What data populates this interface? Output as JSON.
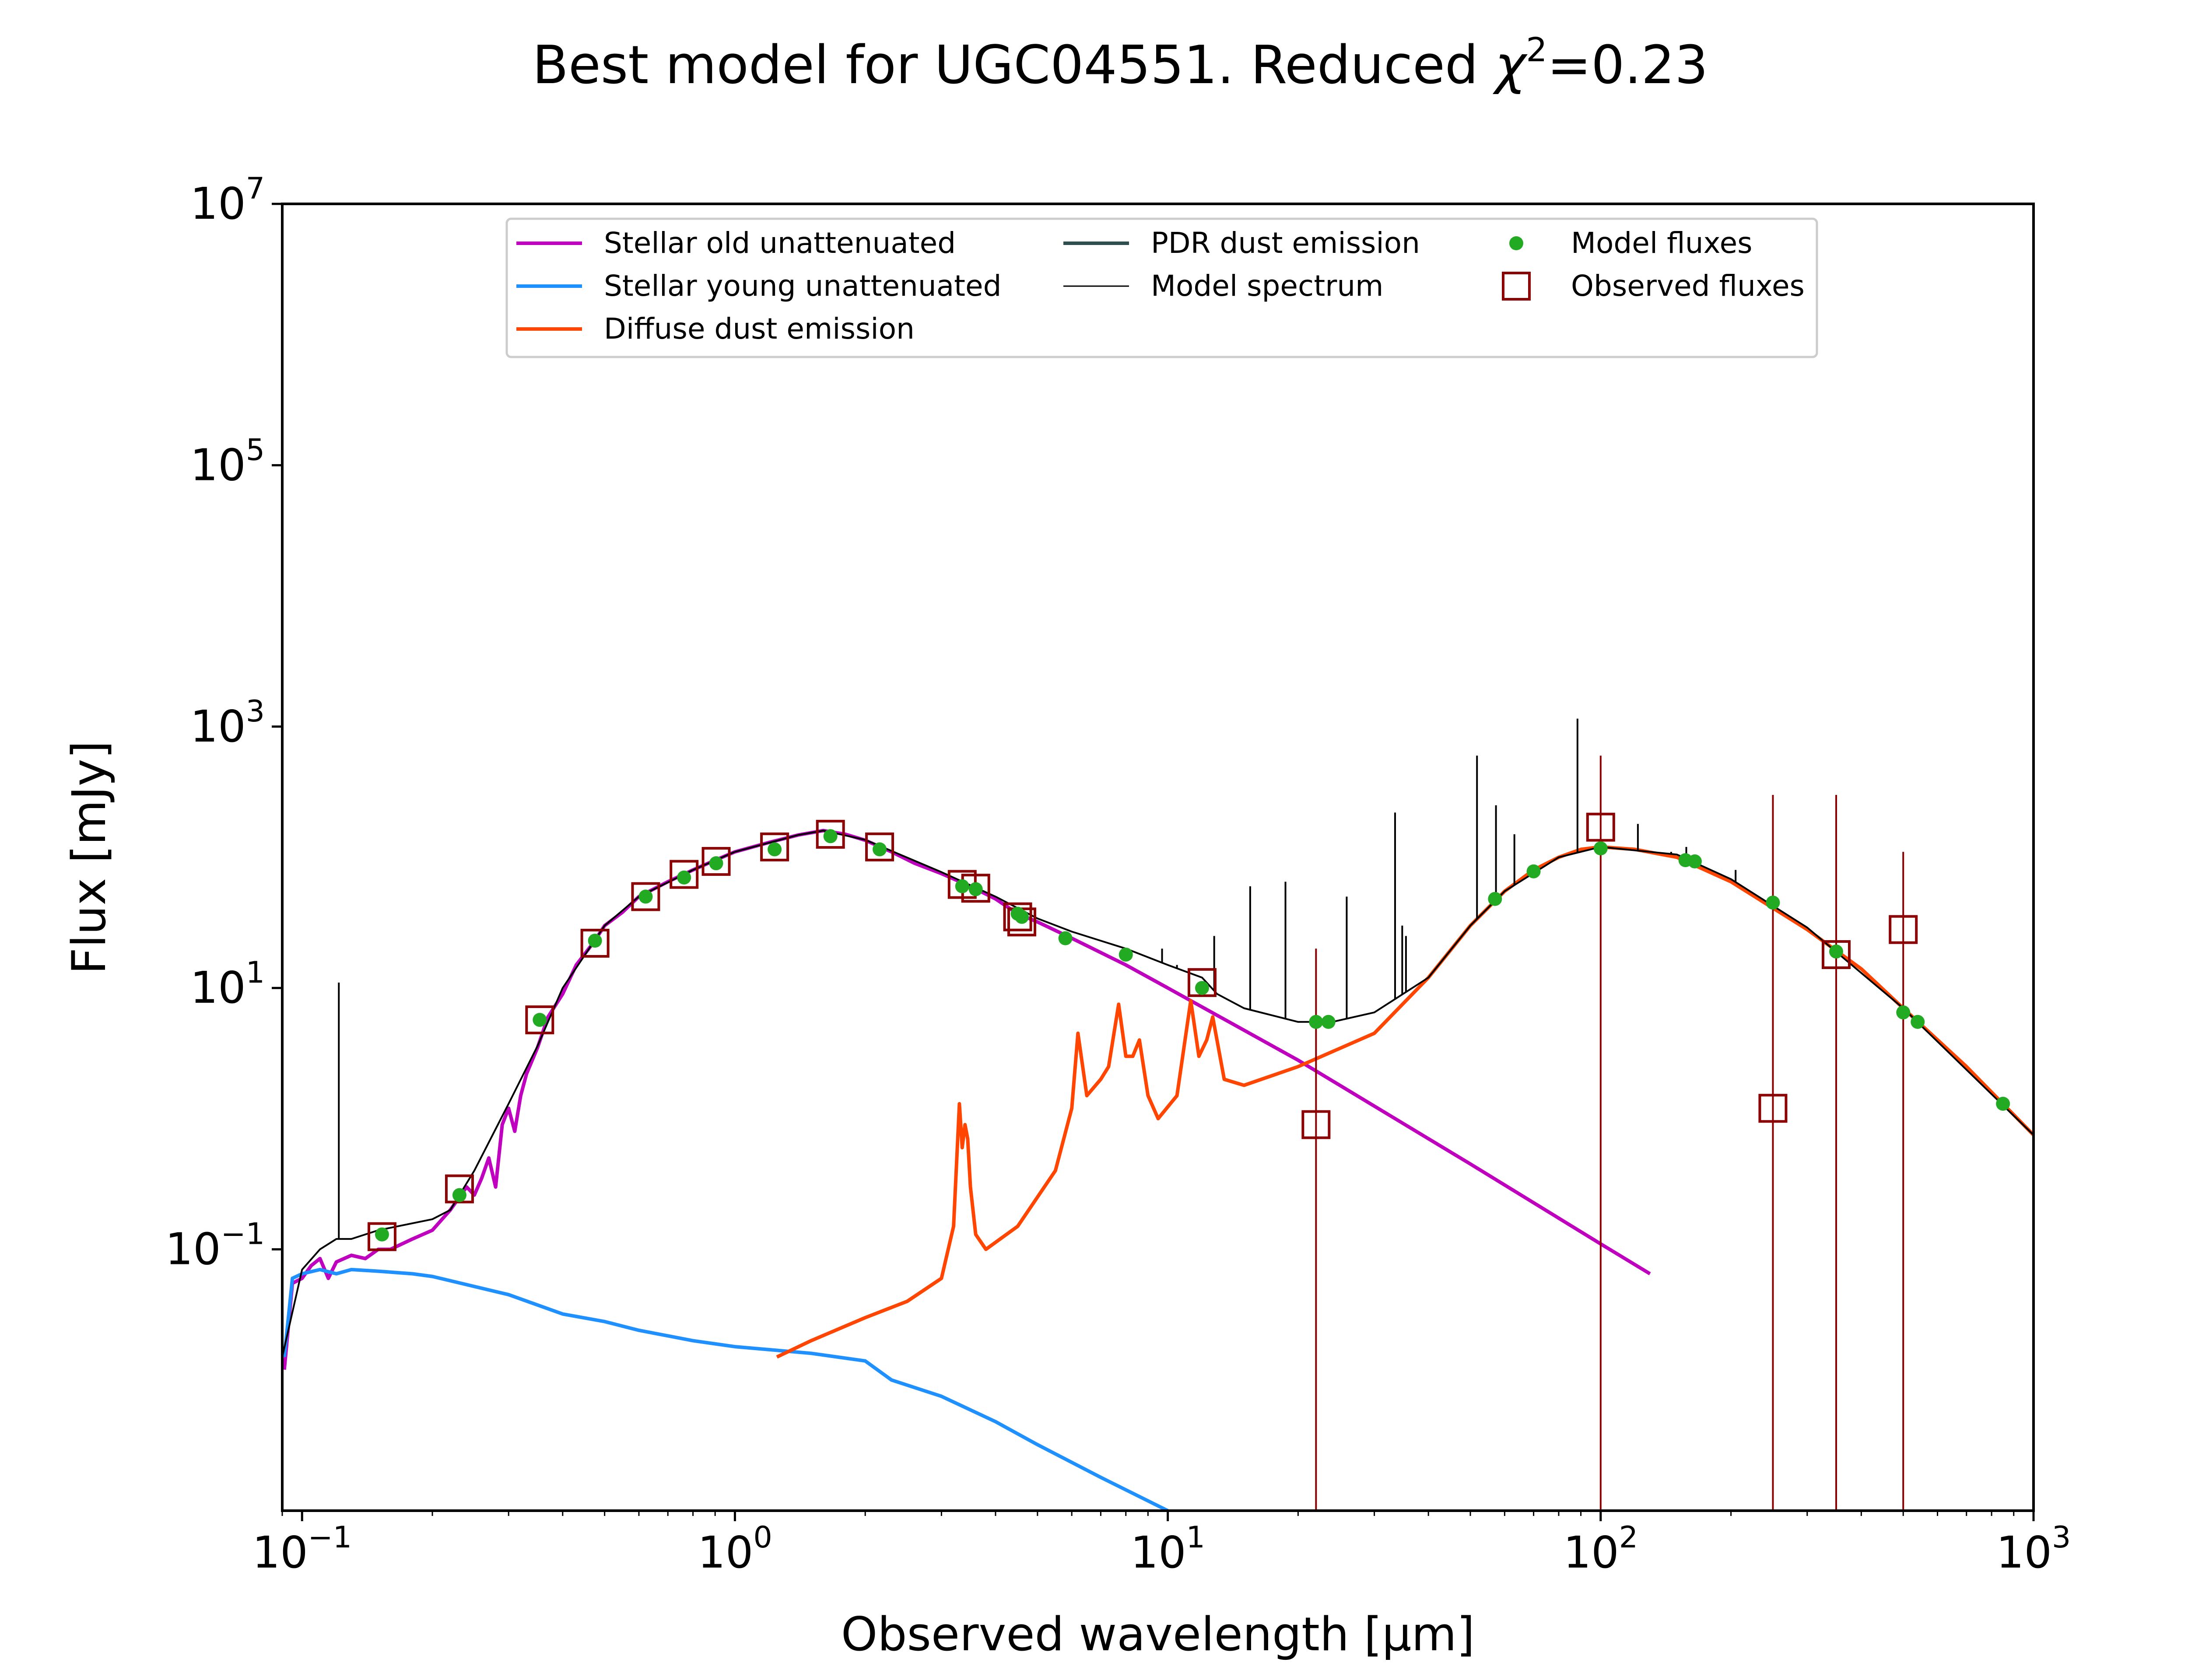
{
  "chart_data": {
    "type": "line",
    "title": "Best model for UGC04551. Reduced",
    "title_chi": "χ",
    "title_chi_exp": "2",
    "title_chi_value": "=0.23",
    "xlabel": "Observed wavelength [μm]",
    "ylabel": "Flux [mJy]",
    "xscale": "log",
    "yscale": "log",
    "xlim": [
      0.09,
      1000
    ],
    "ylim": [
      0.001,
      10000000
    ],
    "x_ticks": [
      {
        "value": 0.1,
        "base": "10",
        "exp": "−1"
      },
      {
        "value": 1,
        "base": "10",
        "exp": "0"
      },
      {
        "value": 10,
        "base": "10",
        "exp": "1"
      },
      {
        "value": 100,
        "base": "10",
        "exp": "2"
      },
      {
        "value": 1000,
        "base": "10",
        "exp": "3"
      }
    ],
    "y_ticks": [
      {
        "value": 0.1,
        "base": "10",
        "exp": "−1"
      },
      {
        "value": 10,
        "base": "10",
        "exp": "1"
      },
      {
        "value": 1000,
        "base": "10",
        "exp": "3"
      },
      {
        "value": 100000,
        "base": "10",
        "exp": "5"
      },
      {
        "value": 10000000,
        "base": "10",
        "exp": "7"
      }
    ],
    "legend_position": "upper-center",
    "legend": [
      {
        "label": "Stellar old unattenuated",
        "kind": "line",
        "color": "#bf00bf"
      },
      {
        "label": "Stellar young unattenuated",
        "kind": "line",
        "color": "#1e90ff"
      },
      {
        "label": "Diffuse dust emission",
        "kind": "line",
        "color": "#ff4500"
      },
      {
        "label": "PDR dust emission",
        "kind": "line",
        "color": "#2f4f4f"
      },
      {
        "label": "Model spectrum",
        "kind": "thinline",
        "color": "#000000"
      },
      {
        "label": "Model fluxes",
        "kind": "dot",
        "color": "#22aa22"
      },
      {
        "label": "Observed fluxes",
        "kind": "square",
        "color": "#8b0000"
      }
    ],
    "series": [
      {
        "name": "Stellar old unattenuated",
        "color": "#bf00bf",
        "points": [
          [
            0.091,
            0.012
          ],
          [
            0.095,
            0.055
          ],
          [
            0.1,
            0.06
          ],
          [
            0.105,
            0.075
          ],
          [
            0.11,
            0.085
          ],
          [
            0.115,
            0.06
          ],
          [
            0.12,
            0.08
          ],
          [
            0.13,
            0.09
          ],
          [
            0.14,
            0.085
          ],
          [
            0.15,
            0.1
          ],
          [
            0.16,
            0.1
          ],
          [
            0.18,
            0.12
          ],
          [
            0.2,
            0.14
          ],
          [
            0.22,
            0.2
          ],
          [
            0.24,
            0.3
          ],
          [
            0.25,
            0.26
          ],
          [
            0.26,
            0.35
          ],
          [
            0.27,
            0.5
          ],
          [
            0.28,
            0.3
          ],
          [
            0.29,
            0.9
          ],
          [
            0.3,
            1.2
          ],
          [
            0.31,
            0.8
          ],
          [
            0.32,
            1.5
          ],
          [
            0.33,
            2.2
          ],
          [
            0.35,
            3.5
          ],
          [
            0.37,
            6
          ],
          [
            0.4,
            9
          ],
          [
            0.43,
            15
          ],
          [
            0.47,
            22
          ],
          [
            0.5,
            30
          ],
          [
            0.55,
            38
          ],
          [
            0.6,
            50
          ],
          [
            0.7,
            65
          ],
          [
            0.8,
            80
          ],
          [
            0.9,
            95
          ],
          [
            1.0,
            110
          ],
          [
            1.2,
            130
          ],
          [
            1.4,
            148
          ],
          [
            1.6,
            160
          ],
          [
            1.8,
            150
          ],
          [
            2.0,
            135
          ],
          [
            2.3,
            110
          ],
          [
            2.6,
            90
          ],
          [
            3.0,
            75
          ],
          [
            3.5,
            60
          ],
          [
            4.0,
            48
          ],
          [
            4.5,
            37
          ],
          [
            5.0,
            32
          ],
          [
            6.0,
            24
          ],
          [
            8.0,
            15
          ],
          [
            10,
            10
          ],
          [
            20,
            2.8
          ],
          [
            50,
            0.45
          ],
          [
            100,
            0.11
          ],
          [
            130,
            0.065
          ]
        ]
      },
      {
        "name": "Stellar young unattenuated",
        "color": "#1e90ff",
        "points": [
          [
            0.091,
            0.015
          ],
          [
            0.095,
            0.06
          ],
          [
            0.1,
            0.065
          ],
          [
            0.11,
            0.07
          ],
          [
            0.12,
            0.065
          ],
          [
            0.13,
            0.07
          ],
          [
            0.15,
            0.068
          ],
          [
            0.18,
            0.065
          ],
          [
            0.2,
            0.062
          ],
          [
            0.3,
            0.045
          ],
          [
            0.4,
            0.032
          ],
          [
            0.5,
            0.028
          ],
          [
            0.6,
            0.024
          ],
          [
            0.8,
            0.02
          ],
          [
            1.0,
            0.018
          ],
          [
            1.5,
            0.016
          ],
          [
            2.0,
            0.014
          ],
          [
            2.3,
            0.01
          ],
          [
            3.0,
            0.0075
          ],
          [
            4.0,
            0.0048
          ],
          [
            5.0,
            0.0032
          ],
          [
            7.0,
            0.0018
          ],
          [
            10.0,
            0.001
          ]
        ]
      },
      {
        "name": "Diffuse dust emission",
        "color": "#ff4500",
        "points": [
          [
            1.25,
            0.015
          ],
          [
            1.5,
            0.02
          ],
          [
            2.0,
            0.03
          ],
          [
            2.5,
            0.04
          ],
          [
            3.0,
            0.06
          ],
          [
            3.2,
            0.15
          ],
          [
            3.3,
            1.3
          ],
          [
            3.35,
            0.6
          ],
          [
            3.4,
            0.9
          ],
          [
            3.45,
            0.7
          ],
          [
            3.5,
            0.3
          ],
          [
            3.6,
            0.13
          ],
          [
            3.8,
            0.1
          ],
          [
            4.5,
            0.15
          ],
          [
            5.5,
            0.4
          ],
          [
            6.0,
            1.2
          ],
          [
            6.2,
            4.5
          ],
          [
            6.5,
            1.5
          ],
          [
            7.0,
            2.0
          ],
          [
            7.3,
            2.5
          ],
          [
            7.7,
            7.5
          ],
          [
            8.0,
            3.0
          ],
          [
            8.3,
            3.0
          ],
          [
            8.6,
            4.0
          ],
          [
            9.0,
            1.5
          ],
          [
            9.5,
            1.0
          ],
          [
            10.5,
            1.5
          ],
          [
            11.3,
            8.0
          ],
          [
            11.8,
            3.0
          ],
          [
            12.3,
            4.0
          ],
          [
            12.7,
            6.0
          ],
          [
            13.5,
            2.0
          ],
          [
            15,
            1.8
          ],
          [
            20,
            2.5
          ],
          [
            30,
            4.5
          ],
          [
            40,
            12
          ],
          [
            50,
            30
          ],
          [
            60,
            55
          ],
          [
            70,
            80
          ],
          [
            80,
            100
          ],
          [
            90,
            115
          ],
          [
            100,
            120
          ],
          [
            120,
            115
          ],
          [
            150,
            100
          ],
          [
            200,
            65
          ],
          [
            300,
            28
          ],
          [
            400,
            14
          ],
          [
            500,
            7
          ],
          [
            700,
            2.5
          ],
          [
            1000,
            0.75
          ]
        ]
      },
      {
        "name": "Model spectrum",
        "color": "#000000",
        "points": [
          [
            0.09,
            0.015
          ],
          [
            0.1,
            0.07
          ],
          [
            0.11,
            0.1
          ],
          [
            0.12,
            0.12
          ],
          [
            0.13,
            0.12
          ],
          [
            0.15,
            0.14
          ],
          [
            0.2,
            0.17
          ],
          [
            0.22,
            0.2
          ],
          [
            0.25,
            0.4
          ],
          [
            0.3,
            1.3
          ],
          [
            0.35,
            3.6
          ],
          [
            0.4,
            10
          ],
          [
            0.5,
            30
          ],
          [
            0.6,
            50
          ],
          [
            0.8,
            80
          ],
          [
            1.0,
            110
          ],
          [
            1.4,
            148
          ],
          [
            1.6,
            160
          ],
          [
            2.0,
            136
          ],
          [
            3.0,
            77
          ],
          [
            4.0,
            50
          ],
          [
            5.0,
            34
          ],
          [
            6.0,
            27
          ],
          [
            8.0,
            20
          ],
          [
            10,
            15
          ],
          [
            12,
            12
          ],
          [
            13,
            9
          ],
          [
            15,
            7
          ],
          [
            20,
            5.5
          ],
          [
            24,
            5.5
          ],
          [
            30,
            6.5
          ],
          [
            40,
            12
          ],
          [
            50,
            30
          ],
          [
            60,
            55
          ],
          [
            80,
            100
          ],
          [
            100,
            120
          ],
          [
            150,
            105
          ],
          [
            200,
            68
          ],
          [
            300,
            29
          ],
          [
            500,
            7
          ],
          [
            1000,
            0.75
          ]
        ]
      }
    ],
    "emission_lines": [
      [
        0.1216,
        11
      ],
      [
        9.7,
        20
      ],
      [
        10.5,
        15
      ],
      [
        12.8,
        25
      ],
      [
        15.5,
        60
      ],
      [
        18.7,
        65
      ],
      [
        25.9,
        50
      ],
      [
        33.5,
        220
      ],
      [
        34.8,
        30
      ],
      [
        35.5,
        25
      ],
      [
        51.8,
        600
      ],
      [
        57.3,
        250
      ],
      [
        63.2,
        150
      ],
      [
        88.4,
        1150
      ],
      [
        121.9,
        180
      ],
      [
        145.5,
        110
      ],
      [
        157.7,
        120
      ],
      [
        205,
        80
      ]
    ],
    "model_fluxes": [
      [
        0.153,
        0.13
      ],
      [
        0.231,
        0.26
      ],
      [
        0.354,
        5.7
      ],
      [
        0.475,
        23
      ],
      [
        0.622,
        50
      ],
      [
        0.763,
        70
      ],
      [
        0.905,
        90
      ],
      [
        1.235,
        115
      ],
      [
        1.662,
        145
      ],
      [
        2.159,
        115
      ],
      [
        3.35,
        60
      ],
      [
        3.6,
        57
      ],
      [
        4.5,
        37
      ],
      [
        4.6,
        35
      ],
      [
        5.8,
        24
      ],
      [
        8.0,
        18
      ],
      [
        12.0,
        10
      ],
      [
        22.0,
        5.5
      ],
      [
        23.5,
        5.5
      ],
      [
        57,
        48
      ],
      [
        70,
        78
      ],
      [
        100,
        117
      ],
      [
        157,
        95
      ],
      [
        165,
        93
      ],
      [
        250,
        45
      ],
      [
        350,
        19
      ],
      [
        500,
        6.5
      ],
      [
        540,
        5.5
      ],
      [
        850,
        1.3
      ]
    ],
    "observed_fluxes": [
      {
        "x": 0.153,
        "y": 0.125,
        "err": null
      },
      {
        "x": 0.231,
        "y": 0.29,
        "err": null
      },
      {
        "x": 0.354,
        "y": 5.7,
        "err": null
      },
      {
        "x": 0.475,
        "y": 22,
        "err": null
      },
      {
        "x": 0.622,
        "y": 50,
        "err": null
      },
      {
        "x": 0.763,
        "y": 74,
        "err": null
      },
      {
        "x": 0.905,
        "y": 93,
        "err": null
      },
      {
        "x": 1.235,
        "y": 120,
        "err": null
      },
      {
        "x": 1.662,
        "y": 150,
        "err": null
      },
      {
        "x": 2.159,
        "y": 120,
        "err": null
      },
      {
        "x": 3.35,
        "y": 62,
        "err": null
      },
      {
        "x": 3.6,
        "y": 58,
        "err": null
      },
      {
        "x": 4.5,
        "y": 35,
        "err": null
      },
      {
        "x": 4.6,
        "y": 32,
        "err": null
      },
      {
        "x": 12.0,
        "y": 11,
        "err": null
      },
      {
        "x": 22.0,
        "y": 0.9,
        "err": [
          0.001,
          20
        ]
      },
      {
        "x": 100,
        "y": 170,
        "err": [
          0.001,
          600
        ]
      },
      {
        "x": 250,
        "y": 1.2,
        "err": [
          0.001,
          300
        ]
      },
      {
        "x": 350,
        "y": 18,
        "err": [
          0.001,
          300
        ]
      },
      {
        "x": 500,
        "y": 28,
        "err": [
          0.001,
          110
        ]
      }
    ]
  }
}
